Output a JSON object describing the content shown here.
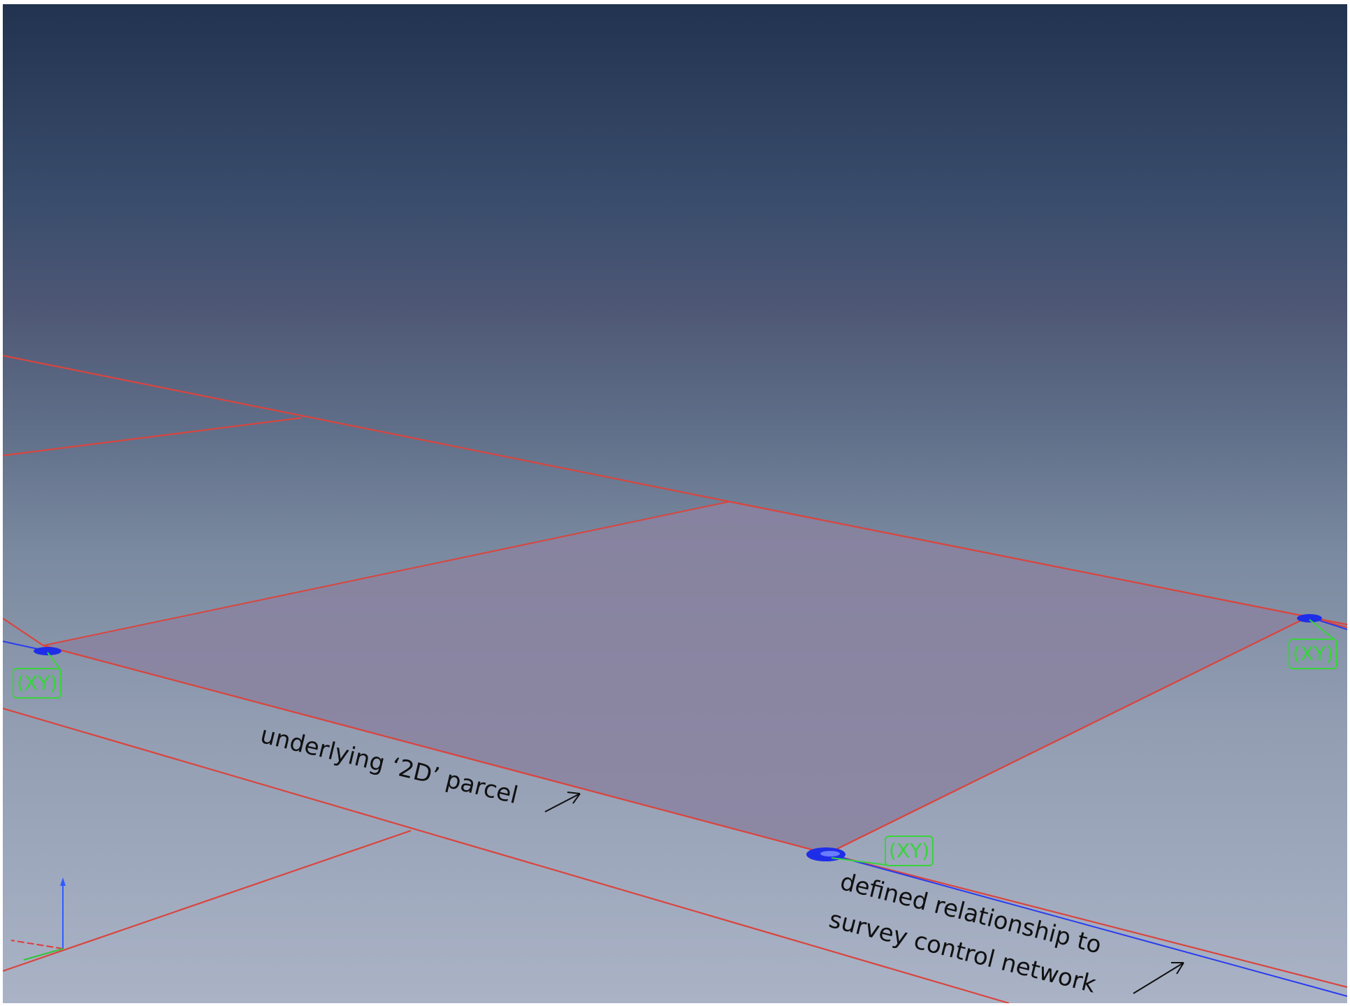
{
  "annotations": {
    "parcel": "underlying ‘2D’ parcel",
    "relationship_line1": "defined relationship to",
    "relationship_line2": "survey control network"
  },
  "point_labels": {
    "left": "(XY)",
    "right": "(XY)",
    "bottom": "(XY)"
  },
  "colors": {
    "parcel_boundary": "#d9453e",
    "parcel_fill": "#8a82a0",
    "control_point": "#1e2ee8",
    "control_line": "#2a3cf0",
    "point_label": "#39d33c",
    "axis_z": "#2f5bff",
    "axis_x": "#e03a3a",
    "axis_y": "#33c23a"
  },
  "icons": {
    "control_point": "blue-ellipse-marker",
    "axis_gizmo": "xyz-axis-triad"
  }
}
